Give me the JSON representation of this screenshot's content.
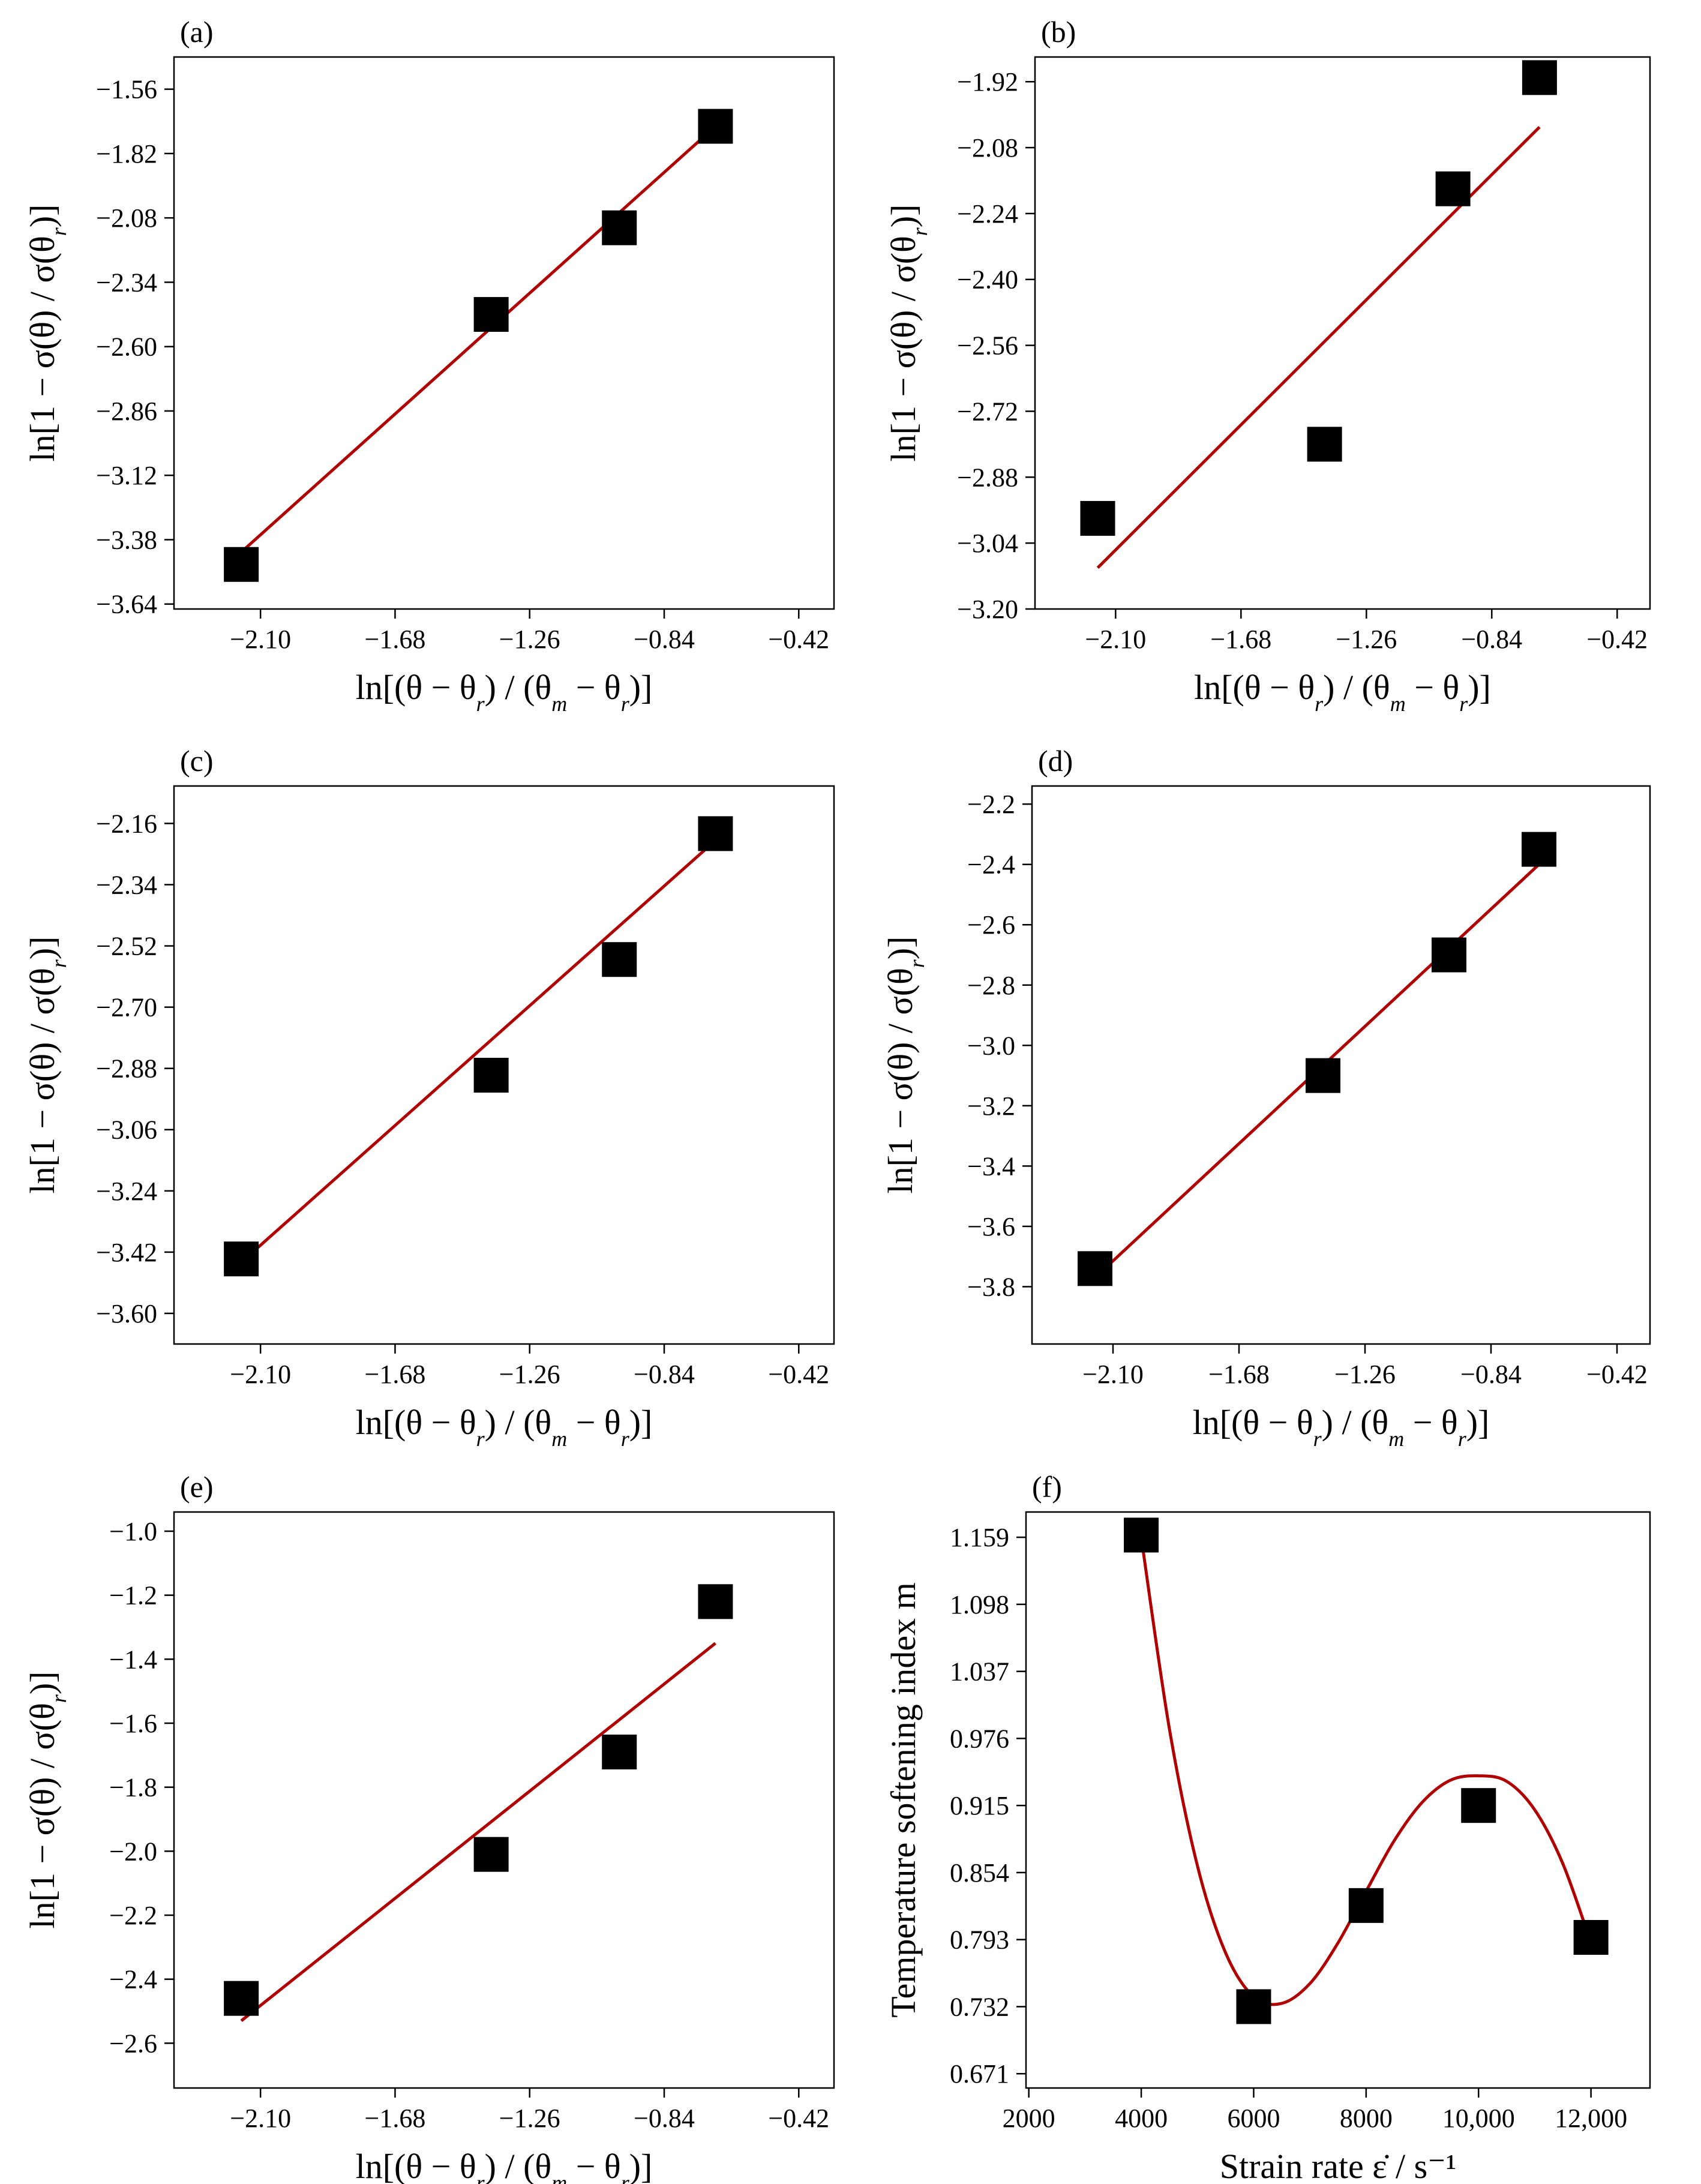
{
  "figure": {
    "line_color": "#b00000",
    "marker_color": "#000000"
  },
  "chart_data": [
    {
      "id": "a",
      "panel_label": "(a)",
      "type": "scatter",
      "title": "",
      "xlabel": "ln[(θ − θ_r) / (θ_m − θ_r)]",
      "ylabel": "ln[1 − σ(θ) / σ(θ_r)]",
      "xlim": [
        -2.37,
        -0.31
      ],
      "ylim": [
        -3.66,
        -1.43
      ],
      "xticks": [
        -2.1,
        -1.68,
        -1.26,
        -0.84,
        -0.42
      ],
      "xtick_labels": [
        "-2.10",
        "-1.68",
        "-1.26",
        "-0.84",
        "-0.42"
      ],
      "yticks": [
        -3.64,
        -3.38,
        -3.12,
        -2.86,
        -2.6,
        -2.34,
        -2.08,
        -1.82,
        -1.56
      ],
      "ytick_labels": [
        "-3.64",
        "-3.38",
        "-3.12",
        "-2.86",
        "-2.60",
        "-2.34",
        "-2.08",
        "-1.82",
        "-1.56"
      ],
      "series": [
        {
          "name": "data",
          "x": [
            -2.16,
            -1.38,
            -0.98,
            -0.68
          ],
          "y": [
            -3.48,
            -2.47,
            -2.12,
            -1.71
          ]
        }
      ],
      "fit": {
        "type": "linear",
        "x": [
          -2.16,
          -0.68
        ],
        "y": [
          -3.43,
          -1.71
        ]
      }
    },
    {
      "id": "b",
      "panel_label": "(b)",
      "type": "scatter",
      "title": "",
      "xlabel": "ln[(θ − θ_r) / (θ_m − θ_r)]",
      "ylabel": "ln[1 − σ(θ) / σ(θ_r)]",
      "xlim": [
        -2.37,
        -0.31
      ],
      "ylim": [
        -3.2,
        -1.86
      ],
      "xticks": [
        -2.1,
        -1.68,
        -1.26,
        -0.84,
        -0.42
      ],
      "xtick_labels": [
        "-2.10",
        "-1.68",
        "-1.26",
        "-0.84",
        "-0.42"
      ],
      "yticks": [
        -3.2,
        -3.04,
        -2.88,
        -2.72,
        -2.56,
        -2.4,
        -2.24,
        -2.08,
        -1.92
      ],
      "ytick_labels": [
        "-3.20",
        "-3.04",
        "-2.88",
        "-2.72",
        "-2.56",
        "-2.40",
        "-2.24",
        "-2.08",
        "-1.92"
      ],
      "series": [
        {
          "name": "data",
          "x": [
            -2.16,
            -1.4,
            -0.97,
            -0.68
          ],
          "y": [
            -2.98,
            -2.8,
            -2.18,
            -1.91
          ]
        }
      ],
      "fit": {
        "type": "linear",
        "x": [
          -2.16,
          -0.68
        ],
        "y": [
          -3.1,
          -2.03
        ]
      }
    },
    {
      "id": "c",
      "panel_label": "(c)",
      "type": "scatter",
      "title": "",
      "xlabel": "ln[(θ − θ_r) / (θ_m − θ_r)]",
      "ylabel": "ln[1 − σ(θ) / σ(θ_r)]",
      "xlim": [
        -2.37,
        -0.31
      ],
      "ylim": [
        -3.69,
        -2.05
      ],
      "xticks": [
        -2.1,
        -1.68,
        -1.26,
        -0.84,
        -0.42
      ],
      "xtick_labels": [
        "-2.10",
        "-1.68",
        "-1.26",
        "-0.84",
        "-0.42"
      ],
      "yticks": [
        -3.6,
        -3.42,
        -3.24,
        -3.06,
        -2.88,
        -2.7,
        -2.52,
        -2.34,
        -2.16
      ],
      "ytick_labels": [
        "-3.60",
        "-3.42",
        "-3.24",
        "-3.06",
        "-2.88",
        "-2.70",
        "-2.52",
        "-2.34",
        "-2.16"
      ],
      "series": [
        {
          "name": "data",
          "x": [
            -2.16,
            -1.38,
            -0.98,
            -0.68
          ],
          "y": [
            -3.44,
            -2.9,
            -2.56,
            -2.19
          ]
        }
      ],
      "fit": {
        "type": "linear",
        "x": [
          -2.16,
          -0.68
        ],
        "y": [
          -3.45,
          -2.21
        ]
      }
    },
    {
      "id": "d",
      "panel_label": "(d)",
      "type": "scatter",
      "title": "",
      "xlabel": "ln[(θ − θ_r) / (θ_m − θ_r)]",
      "ylabel": "ln[1 − σ(θ) / σ(θ_r)]",
      "xlim": [
        -2.37,
        -0.31
      ],
      "ylim": [
        -3.99,
        -2.14
      ],
      "xticks": [
        -2.1,
        -1.68,
        -1.26,
        -0.84,
        -0.42
      ],
      "xtick_labels": [
        "-2.10",
        "-1.68",
        "-1.26",
        "-0.84",
        "-0.42"
      ],
      "yticks": [
        -3.8,
        -3.6,
        -3.4,
        -3.2,
        -3.0,
        -2.8,
        -2.6,
        -2.4,
        -2.2
      ],
      "ytick_labels": [
        "-3.8",
        "-3.6",
        "-3.4",
        "-3.2",
        "-3.0",
        "-2.8",
        "-2.6",
        "-2.4",
        "-2.2"
      ],
      "series": [
        {
          "name": "data",
          "x": [
            -2.16,
            -1.4,
            -0.98,
            -0.68
          ],
          "y": [
            -3.74,
            -3.1,
            -2.7,
            -2.35
          ]
        }
      ],
      "fit": {
        "type": "linear",
        "x": [
          -2.16,
          -0.68
        ],
        "y": [
          -3.77,
          -2.4
        ]
      }
    },
    {
      "id": "e",
      "panel_label": "(e)",
      "type": "scatter",
      "title": "",
      "xlabel": "ln[(θ − θ_r) / (θ_m − θ_r)]",
      "ylabel": "ln[1 − σ(θ) / σ(θ_r)]",
      "xlim": [
        -2.37,
        -0.31
      ],
      "ylim": [
        -2.74,
        -0.94
      ],
      "xticks": [
        -2.1,
        -1.68,
        -1.26,
        -0.84,
        -0.42
      ],
      "xtick_labels": [
        "-2.10",
        "-1.68",
        "-1.26",
        "-0.84",
        "-0.42"
      ],
      "yticks": [
        -2.6,
        -2.4,
        -2.2,
        -2.0,
        -1.8,
        -1.6,
        -1.4,
        -1.2,
        -1.0
      ],
      "ytick_labels": [
        "-2.6",
        "-2.4",
        "-2.2",
        "-2.0",
        "-1.8",
        "-1.6",
        "-1.4",
        "-1.2",
        "-1.0"
      ],
      "series": [
        {
          "name": "data",
          "x": [
            -2.16,
            -1.38,
            -0.98,
            -0.68
          ],
          "y": [
            -2.46,
            -2.01,
            -1.69,
            -1.22
          ]
        }
      ],
      "fit": {
        "type": "linear",
        "x": [
          -2.16,
          -0.68
        ],
        "y": [
          -2.53,
          -1.35
        ]
      }
    },
    {
      "id": "f",
      "panel_label": "(f)",
      "type": "scatter",
      "title": "",
      "xlabel": "Strain rate  ε̇ / s⁻¹",
      "ylabel": "Temperature softening index m",
      "xlim": [
        1950,
        13050
      ],
      "ylim": [
        0.658,
        1.182
      ],
      "xticks": [
        2000,
        4000,
        6000,
        8000,
        10000,
        12000
      ],
      "xtick_labels": [
        "2000",
        "4000",
        "6000",
        "8000",
        "10,000",
        "12,000"
      ],
      "yticks": [
        0.671,
        0.732,
        0.793,
        0.854,
        0.915,
        0.976,
        1.037,
        1.098,
        1.159
      ],
      "ytick_labels": [
        "0.671",
        "0.732",
        "0.793",
        "0.854",
        "0.915",
        "0.976",
        "1.037",
        "1.098",
        "1.159"
      ],
      "series": [
        {
          "name": "data",
          "x": [
            4000,
            6000,
            8000,
            10000,
            12000
          ],
          "y": [
            1.161,
            0.732,
            0.824,
            0.915,
            0.795
          ]
        }
      ],
      "fit": {
        "type": "smooth",
        "x": [
          4000,
          4500,
          5000,
          5500,
          6000,
          6500,
          7000,
          7500,
          8000,
          8500,
          9000,
          9500,
          10000,
          10500,
          11000,
          11500,
          12000
        ],
        "y": [
          1.159,
          0.985,
          0.86,
          0.781,
          0.741,
          0.735,
          0.753,
          0.79,
          0.837,
          0.883,
          0.918,
          0.938,
          0.942,
          0.937,
          0.911,
          0.862,
          0.79
        ]
      }
    }
  ]
}
